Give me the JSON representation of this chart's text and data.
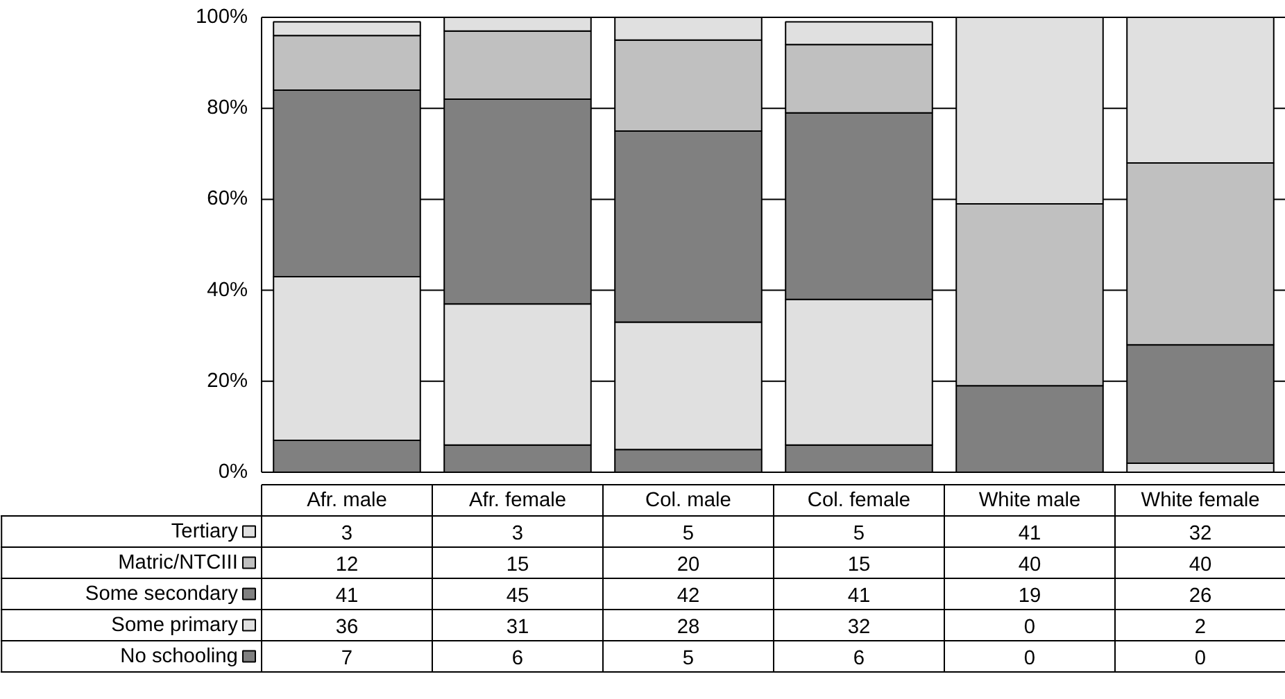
{
  "chart_data": {
    "type": "bar",
    "stacked": true,
    "categories": [
      "Afr. male",
      "Afr. female",
      "Col. male",
      "Col. female",
      "White male",
      "White female"
    ],
    "series": [
      {
        "name": "No schooling",
        "color": "#808080",
        "values": [
          7,
          6,
          5,
          6,
          0,
          0
        ]
      },
      {
        "name": "Some primary",
        "color": "#e0e0e0",
        "values": [
          36,
          31,
          28,
          32,
          0,
          2
        ]
      },
      {
        "name": "Some secondary",
        "color": "#808080",
        "values": [
          41,
          45,
          42,
          41,
          19,
          26
        ]
      },
      {
        "name": "Matric/NTCIII",
        "color": "#c0c0c0",
        "values": [
          12,
          15,
          20,
          15,
          40,
          40
        ]
      },
      {
        "name": "Tertiary",
        "color": "#e0e0e0",
        "values": [
          3,
          3,
          5,
          5,
          41,
          32
        ]
      }
    ],
    "ylim": [
      0,
      100
    ],
    "yticks": [
      {
        "value": 0,
        "label": "0%"
      },
      {
        "value": 20,
        "label": "20%"
      },
      {
        "value": 40,
        "label": "40%"
      },
      {
        "value": 60,
        "label": "60%"
      },
      {
        "value": 80,
        "label": "80%"
      },
      {
        "value": 100,
        "label": "100%"
      }
    ],
    "grid": "y",
    "legend": "bottom left",
    "data_labels": true
  }
}
